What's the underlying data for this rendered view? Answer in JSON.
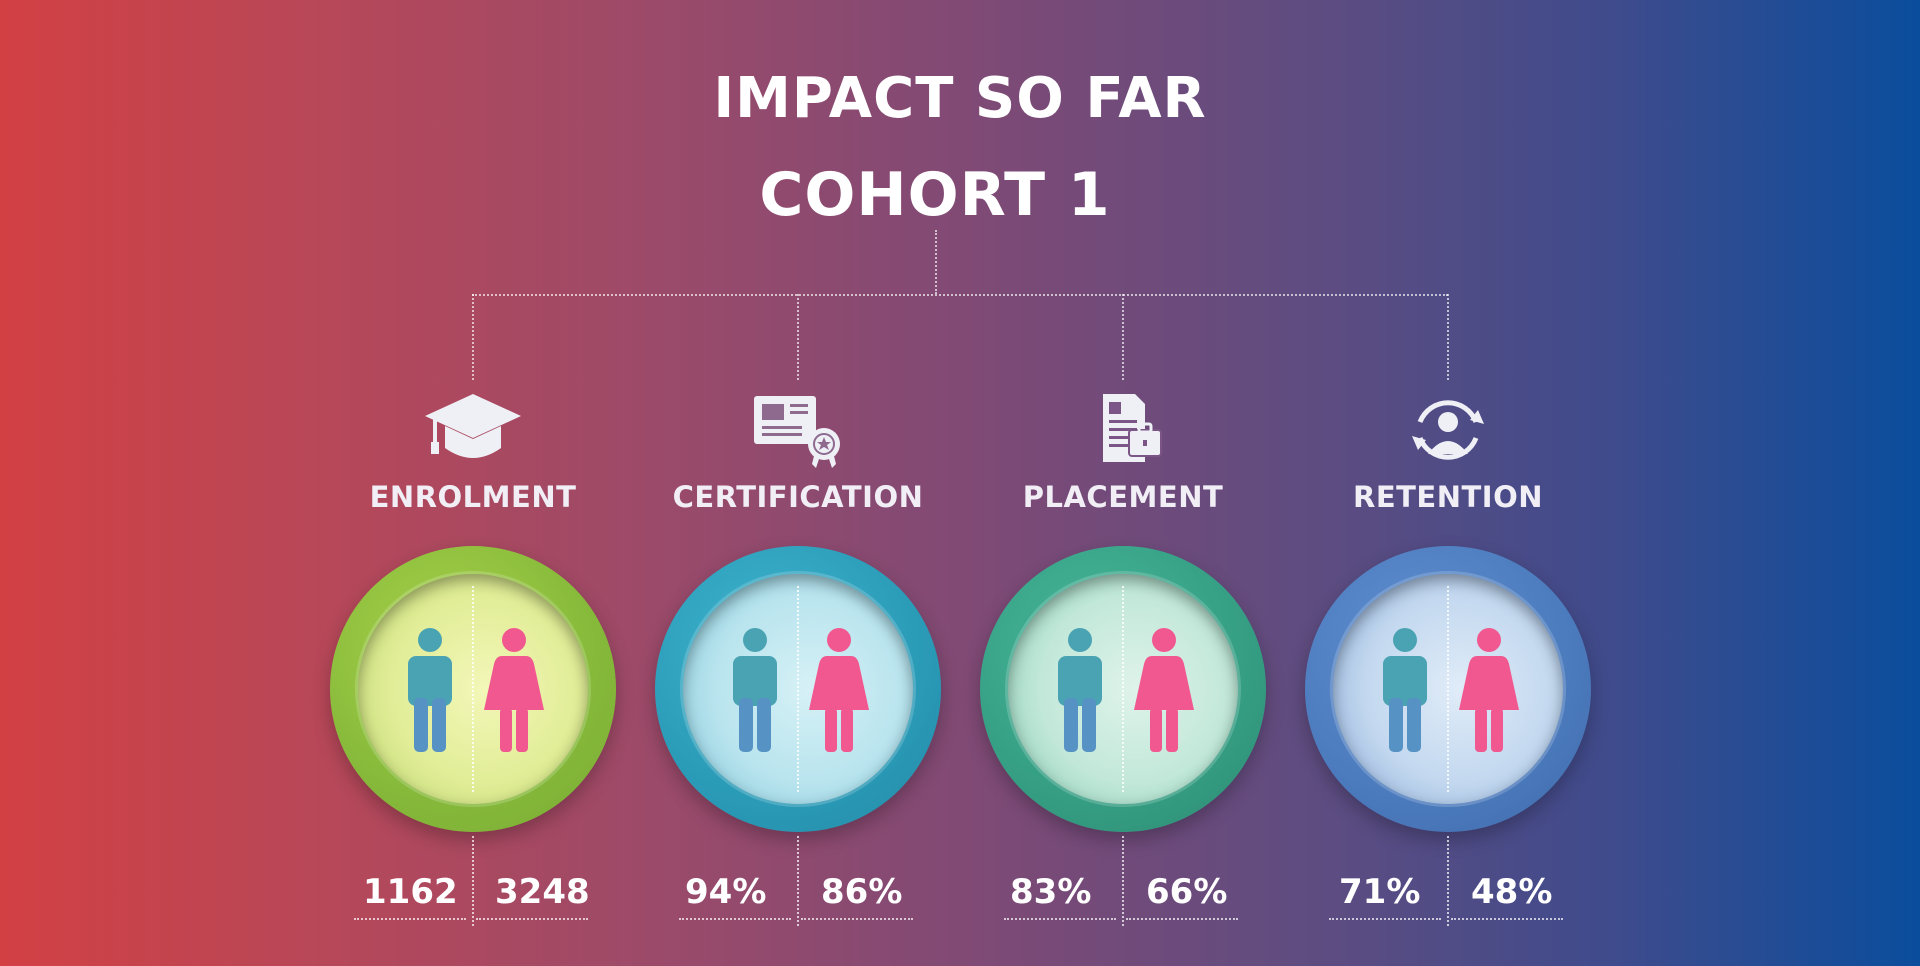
{
  "header": {
    "title": "IMPACT SO FAR",
    "subtitle": "COHORT 1"
  },
  "colors": {
    "male_icon": "#4aa3b3",
    "female_icon": "#f0588f",
    "enrolment_ring": "#8ec03c",
    "certification_ring": "#2aa2bd",
    "placement_ring": "#3aa78e",
    "retention_ring": "#4f7fbf"
  },
  "metrics": [
    {
      "label": "ENROLMENT",
      "icon": "graduation-cap-icon",
      "male": "1162",
      "female": "3248"
    },
    {
      "label": "CERTIFICATION",
      "icon": "certificate-icon",
      "male": "94%",
      "female": "86%"
    },
    {
      "label": "PLACEMENT",
      "icon": "resume-briefcase-icon",
      "male": "83%",
      "female": "66%"
    },
    {
      "label": "RETENTION",
      "icon": "user-cycle-icon",
      "male": "71%",
      "female": "48%"
    }
  ]
}
